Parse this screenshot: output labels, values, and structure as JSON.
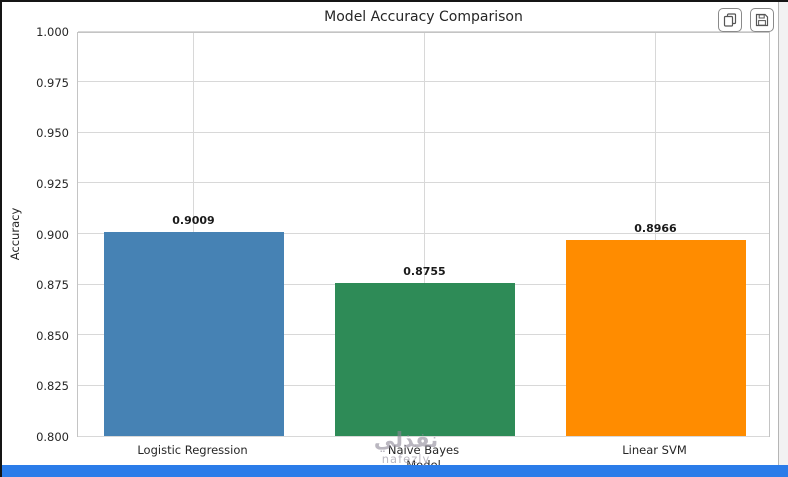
{
  "toolbar": {
    "icons": [
      "copy-icon",
      "save-icon"
    ]
  },
  "watermark": {
    "arabic": "نفذلي",
    "latin": "nafezly"
  },
  "colors": {
    "bottom_bar": "#2b7ce9"
  },
  "chart_data": {
    "type": "bar",
    "title": "Model Accuracy Comparison",
    "xlabel": "Model",
    "ylabel": "Accuracy",
    "categories": [
      "Logistic Regression",
      "Naive Bayes",
      "Linear SVM"
    ],
    "values": [
      0.9009,
      0.8755,
      0.8966
    ],
    "value_labels": [
      "0.9009",
      "0.8755",
      "0.8966"
    ],
    "bar_colors": [
      "#4682B4",
      "#2E8B57",
      "#FF8C00"
    ],
    "ylim": [
      0.8,
      1.0
    ],
    "ytick_labels": [
      "0.800",
      "0.825",
      "0.850",
      "0.875",
      "0.900",
      "0.925",
      "0.950",
      "0.975",
      "1.000"
    ],
    "grid": true,
    "legend": false
  }
}
